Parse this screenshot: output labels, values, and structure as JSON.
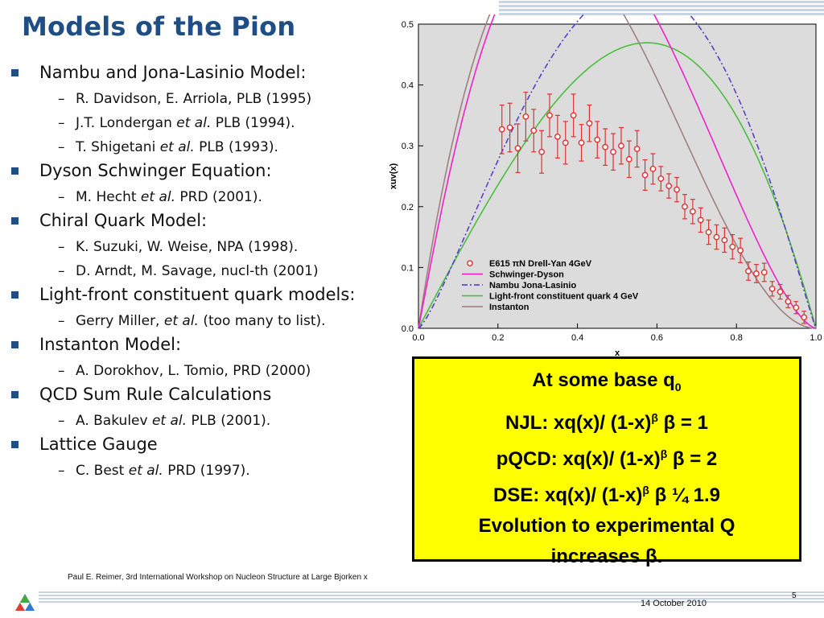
{
  "slide": {
    "title": "Models of the Pion",
    "bullets": [
      {
        "text": "Nambu and Jona-Lasinio Model:",
        "subs": [
          {
            "pre": "R. Davidson, E. Arriola, PLB (1995)",
            "em": "",
            "post": ""
          },
          {
            "pre": "J.T. Londergan ",
            "em": "et al.",
            "post": " PLB (1994)."
          },
          {
            "pre": "T. Shigetani ",
            "em": "et al.",
            "post": " PLB (1993)."
          }
        ]
      },
      {
        "text": "Dyson Schwinger Equation:",
        "subs": [
          {
            "pre": "M. Hecht ",
            "em": "et al.",
            "post": " PRD (2001)."
          }
        ]
      },
      {
        "text": "Chiral Quark Model:",
        "subs": [
          {
            "pre": "K. Suzuki, W. Weise, NPA (1998).",
            "em": "",
            "post": ""
          },
          {
            "pre": "D. Arndt, M. Savage, nucl-th (2001)",
            "em": "",
            "post": ""
          }
        ]
      },
      {
        "text": "Light-front constituent quark models:",
        "subs": [
          {
            "pre": "Gerry Miller, ",
            "em": "et al.",
            "post": " (too many to list)."
          }
        ]
      },
      {
        "text": "Instanton Model:",
        "subs": [
          {
            "pre": "A. Dorokhov, L. Tomio, PRD (2000)",
            "em": "",
            "post": ""
          }
        ]
      },
      {
        "text": "QCD Sum Rule Calculations",
        "subs": [
          {
            "pre": "A. Bakulev ",
            "em": "et al.",
            "post": " PLB (2001)."
          }
        ]
      },
      {
        "text": "Lattice Gauge",
        "subs": [
          {
            "pre": "C. Best ",
            "em": "et al.",
            "post": " PRD (1997)."
          }
        ]
      }
    ],
    "box": {
      "line1": "At some base q",
      "line1_sub": "0",
      "line2a": "NJL: xq(x)/ (1-x)",
      "line2b": " = 1",
      "line3a": "pQCD: xq(x)/ (1-x)",
      "line3b": " = 2",
      "line4a": "DSE: xq(x)/ (1-x)",
      "line4b": " ¼ 1.9",
      "line5": "Evolution to experimental Q",
      "line6a": "increases ",
      "line6b": ".",
      "beta": "β"
    },
    "footer": {
      "text": "Paul E. Reimer, 3rd International Workshop on Nucleon Structure at Large Bjorken x",
      "page": "5",
      "date": "14 October 2010"
    }
  },
  "chart_data": {
    "type": "scatter",
    "xlabel": "x",
    "ylabel": "xuv(x)",
    "xlim": [
      0,
      1
    ],
    "ylim": [
      0,
      0.5
    ],
    "x_ticks": [
      "0.0",
      "0.2",
      "0.4",
      "0.6",
      "0.8",
      "1.0"
    ],
    "y_ticks": [
      "0.0",
      "0.1",
      "0.2",
      "0.3",
      "0.4",
      "0.5"
    ],
    "background": "#dcdcdc",
    "legend_position": "bottom-left",
    "series": [
      {
        "name": "E615 πN Drell-Yan 4GeV",
        "kind": "points",
        "color": "#e03030",
        "points": [
          [
            0.21,
            0.327,
            0.04
          ],
          [
            0.23,
            0.33,
            0.04
          ],
          [
            0.25,
            0.296,
            0.04
          ],
          [
            0.27,
            0.348,
            0.04
          ],
          [
            0.29,
            0.325,
            0.035
          ],
          [
            0.31,
            0.29,
            0.035
          ],
          [
            0.33,
            0.35,
            0.035
          ],
          [
            0.35,
            0.315,
            0.035
          ],
          [
            0.37,
            0.305,
            0.035
          ],
          [
            0.39,
            0.35,
            0.035
          ],
          [
            0.41,
            0.305,
            0.03
          ],
          [
            0.43,
            0.337,
            0.03
          ],
          [
            0.45,
            0.31,
            0.03
          ],
          [
            0.47,
            0.298,
            0.03
          ],
          [
            0.49,
            0.29,
            0.03
          ],
          [
            0.51,
            0.3,
            0.03
          ],
          [
            0.53,
            0.278,
            0.03
          ],
          [
            0.55,
            0.295,
            0.03
          ],
          [
            0.57,
            0.252,
            0.025
          ],
          [
            0.59,
            0.262,
            0.025
          ],
          [
            0.61,
            0.246,
            0.02
          ],
          [
            0.63,
            0.234,
            0.02
          ],
          [
            0.65,
            0.228,
            0.02
          ],
          [
            0.67,
            0.2,
            0.02
          ],
          [
            0.69,
            0.192,
            0.02
          ],
          [
            0.71,
            0.178,
            0.02
          ],
          [
            0.73,
            0.158,
            0.02
          ],
          [
            0.75,
            0.15,
            0.02
          ],
          [
            0.77,
            0.145,
            0.02
          ],
          [
            0.79,
            0.134,
            0.02
          ],
          [
            0.81,
            0.128,
            0.02
          ],
          [
            0.83,
            0.094,
            0.015
          ],
          [
            0.85,
            0.09,
            0.015
          ],
          [
            0.87,
            0.092,
            0.015
          ],
          [
            0.89,
            0.065,
            0.012
          ],
          [
            0.91,
            0.06,
            0.012
          ],
          [
            0.93,
            0.044,
            0.01
          ],
          [
            0.95,
            0.034,
            0.01
          ],
          [
            0.97,
            0.018,
            0.01
          ]
        ]
      },
      {
        "name": "Schwinger-Dyson",
        "kind": "line",
        "color": "#ee22cc",
        "dash": ""
      },
      {
        "name": "Nambu Jona-Lasinio",
        "kind": "line",
        "color": "#5b3fc9",
        "dash": "7,3,2,3"
      },
      {
        "name": "Light-front constituent quark 4 GeV",
        "kind": "line",
        "color": "#49bf3c",
        "dash": ""
      },
      {
        "name": "Instanton",
        "kind": "line",
        "color": "#a08080",
        "dash": ""
      }
    ]
  }
}
